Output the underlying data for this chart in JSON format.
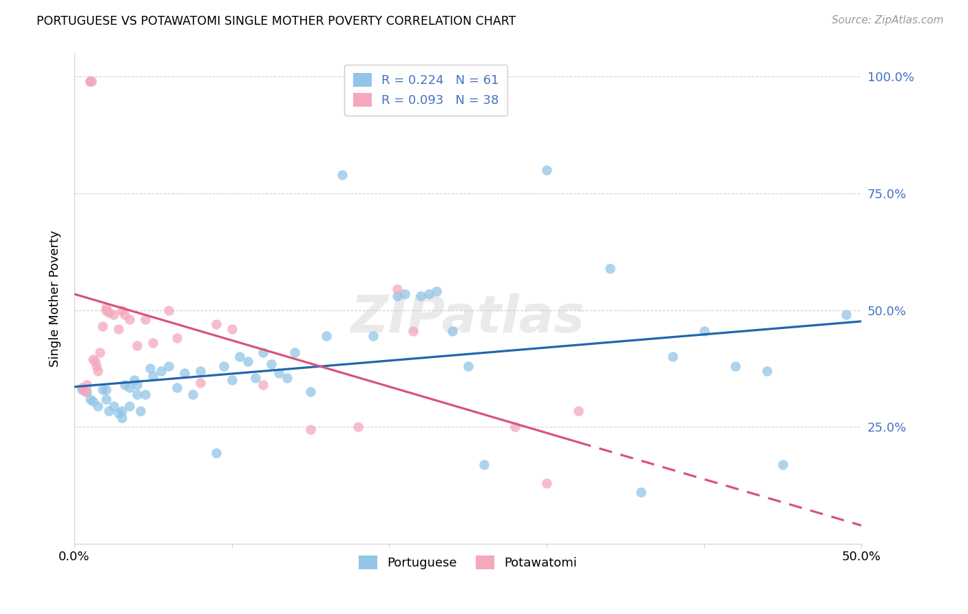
{
  "title": "PORTUGUESE VS POTAWATOMI SINGLE MOTHER POVERTY CORRELATION CHART",
  "source": "Source: ZipAtlas.com",
  "ylabel": "Single Mother Poverty",
  "yticks": [
    0.0,
    0.25,
    0.5,
    0.75,
    1.0
  ],
  "ytick_labels": [
    "",
    "25.0%",
    "50.0%",
    "75.0%",
    "100.0%"
  ],
  "xlim": [
    0.0,
    0.5
  ],
  "ylim": [
    0.0,
    1.05
  ],
  "portuguese_R": 0.224,
  "portuguese_N": 61,
  "potawatomi_R": 0.093,
  "potawatomi_N": 38,
  "portuguese_color": "#92c5e8",
  "potawatomi_color": "#f4a8bc",
  "portuguese_line_color": "#2166ac",
  "potawatomi_line_color": "#d9537a",
  "watermark": "ZIPatlas",
  "portuguese_x": [
    0.005,
    0.008,
    0.01,
    0.012,
    0.015,
    0.018,
    0.02,
    0.02,
    0.022,
    0.025,
    0.028,
    0.03,
    0.03,
    0.032,
    0.035,
    0.035,
    0.038,
    0.04,
    0.04,
    0.042,
    0.045,
    0.048,
    0.05,
    0.055,
    0.06,
    0.065,
    0.07,
    0.075,
    0.08,
    0.09,
    0.095,
    0.1,
    0.105,
    0.11,
    0.115,
    0.12,
    0.125,
    0.13,
    0.135,
    0.14,
    0.15,
    0.16,
    0.17,
    0.19,
    0.205,
    0.21,
    0.22,
    0.225,
    0.23,
    0.24,
    0.25,
    0.26,
    0.3,
    0.34,
    0.36,
    0.38,
    0.4,
    0.42,
    0.44,
    0.45,
    0.49
  ],
  "portuguese_y": [
    0.33,
    0.325,
    0.31,
    0.305,
    0.295,
    0.33,
    0.33,
    0.31,
    0.285,
    0.295,
    0.28,
    0.285,
    0.27,
    0.34,
    0.335,
    0.295,
    0.35,
    0.34,
    0.32,
    0.285,
    0.32,
    0.375,
    0.36,
    0.37,
    0.38,
    0.335,
    0.365,
    0.32,
    0.37,
    0.195,
    0.38,
    0.35,
    0.4,
    0.39,
    0.355,
    0.41,
    0.385,
    0.365,
    0.355,
    0.41,
    0.325,
    0.445,
    0.79,
    0.445,
    0.53,
    0.535,
    0.53,
    0.535,
    0.54,
    0.455,
    0.38,
    0.17,
    0.8,
    0.59,
    0.11,
    0.4,
    0.455,
    0.38,
    0.37,
    0.17,
    0.49
  ],
  "potawatomi_x": [
    0.005,
    0.006,
    0.007,
    0.008,
    0.01,
    0.01,
    0.01,
    0.011,
    0.012,
    0.013,
    0.014,
    0.015,
    0.016,
    0.018,
    0.02,
    0.02,
    0.022,
    0.025,
    0.028,
    0.03,
    0.032,
    0.035,
    0.04,
    0.045,
    0.05,
    0.06,
    0.065,
    0.08,
    0.09,
    0.1,
    0.12,
    0.15,
    0.18,
    0.205,
    0.215,
    0.28,
    0.3,
    0.32
  ],
  "potawatomi_y": [
    0.335,
    0.33,
    0.325,
    0.34,
    0.99,
    0.99,
    0.99,
    0.99,
    0.395,
    0.39,
    0.38,
    0.37,
    0.41,
    0.465,
    0.505,
    0.5,
    0.495,
    0.49,
    0.46,
    0.5,
    0.49,
    0.48,
    0.425,
    0.48,
    0.43,
    0.5,
    0.44,
    0.345,
    0.47,
    0.46,
    0.34,
    0.245,
    0.25,
    0.545,
    0.455,
    0.25,
    0.13,
    0.285
  ]
}
